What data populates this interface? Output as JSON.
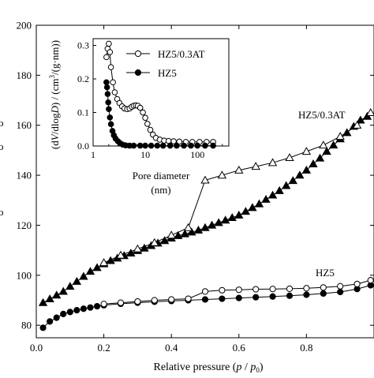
{
  "chart_data": [
    {
      "id": "main",
      "type": "line",
      "xlabel": "Relative pressure (p / p0)",
      "xlabel_parts": {
        "prefix": "Relative pressure (",
        "p": "p",
        "slash": " / ",
        "p0": "p",
        "sub0": "0",
        "suffix": ")"
      },
      "ylabel": "",
      "xlim": [
        0.0,
        1.0
      ],
      "ylim": [
        75,
        200
      ],
      "xticks": [
        0.0,
        0.2,
        0.4,
        0.6,
        0.8
      ],
      "xtick_labels": [
        "0.0",
        "0.2",
        "0.4",
        "0.6",
        "0.8"
      ],
      "yticks": [
        80,
        100,
        120,
        140,
        160,
        180,
        200
      ],
      "ytick_labels": [
        "80",
        "100",
        "120",
        "140",
        "160",
        "180",
        "200"
      ],
      "left_edge_glyphs": [
        "o",
        "o",
        "o"
      ],
      "series": [
        {
          "name": "HZ5/0.3AT",
          "branch": "adsorption",
          "marker": "triangle-filled",
          "points": [
            [
              0.02,
              89
            ],
            [
              0.04,
              90.5
            ],
            [
              0.06,
              92
            ],
            [
              0.08,
              93.5
            ],
            [
              0.1,
              95.5
            ],
            [
              0.12,
              97.5
            ],
            [
              0.14,
              99.5
            ],
            [
              0.16,
              101.5
            ],
            [
              0.18,
              103
            ],
            [
              0.2,
              104.5
            ],
            [
              0.22,
              105.8
            ],
            [
              0.24,
              106.8
            ],
            [
              0.26,
              107.8
            ],
            [
              0.28,
              108.8
            ],
            [
              0.3,
              109.8
            ],
            [
              0.32,
              110.8
            ],
            [
              0.34,
              111.8
            ],
            [
              0.36,
              112.8
            ],
            [
              0.38,
              113.8
            ],
            [
              0.4,
              114.8
            ],
            [
              0.42,
              115.8
            ],
            [
              0.44,
              116.5
            ],
            [
              0.46,
              117.2
            ],
            [
              0.48,
              118
            ],
            [
              0.5,
              119
            ],
            [
              0.52,
              120
            ],
            [
              0.54,
              121
            ],
            [
              0.56,
              122
            ],
            [
              0.58,
              123
            ],
            [
              0.6,
              124
            ],
            [
              0.62,
              125.5
            ],
            [
              0.64,
              127
            ],
            [
              0.66,
              128.5
            ],
            [
              0.68,
              130.3
            ],
            [
              0.7,
              132
            ],
            [
              0.72,
              133.8
            ],
            [
              0.74,
              135.8
            ],
            [
              0.76,
              137.8
            ],
            [
              0.78,
              140
            ],
            [
              0.8,
              142
            ],
            [
              0.82,
              144.5
            ],
            [
              0.84,
              146.8
            ],
            [
              0.86,
              149.5
            ],
            [
              0.88,
              152
            ],
            [
              0.9,
              154.5
            ],
            [
              0.92,
              157
            ],
            [
              0.94,
              159.5
            ],
            [
              0.96,
              162
            ],
            [
              0.98,
              163.5
            ]
          ]
        },
        {
          "name": "HZ5/0.3AT",
          "branch": "desorption",
          "marker": "triangle-open",
          "points": [
            [
              0.2,
              105
            ],
            [
              0.25,
              108
            ],
            [
              0.3,
              110.5
            ],
            [
              0.35,
              113
            ],
            [
              0.4,
              116
            ],
            [
              0.45,
              119
            ],
            [
              0.5,
              138
            ],
            [
              0.55,
              140
            ],
            [
              0.6,
              142
            ],
            [
              0.65,
              143.5
            ],
            [
              0.7,
              145
            ],
            [
              0.75,
              147
            ],
            [
              0.8,
              149.5
            ],
            [
              0.85,
              152
            ],
            [
              0.9,
              155.5
            ],
            [
              0.95,
              160
            ],
            [
              0.99,
              165
            ]
          ]
        },
        {
          "name": "HZ5",
          "branch": "adsorption",
          "marker": "circle-filled",
          "points": [
            [
              0.02,
              79
            ],
            [
              0.04,
              81.5
            ],
            [
              0.06,
              83
            ],
            [
              0.08,
              84.5
            ],
            [
              0.1,
              85.3
            ],
            [
              0.12,
              86
            ],
            [
              0.14,
              86.6
            ],
            [
              0.16,
              87.1
            ],
            [
              0.18,
              87.6
            ],
            [
              0.2,
              88
            ],
            [
              0.25,
              88.6
            ],
            [
              0.3,
              89
            ],
            [
              0.35,
              89.4
            ],
            [
              0.4,
              89.7
            ],
            [
              0.45,
              90
            ],
            [
              0.5,
              90.3
            ],
            [
              0.55,
              90.6
            ],
            [
              0.6,
              90.9
            ],
            [
              0.65,
              91.2
            ],
            [
              0.7,
              91.5
            ],
            [
              0.75,
              91.8
            ],
            [
              0.8,
              92.2
            ],
            [
              0.85,
              92.7
            ],
            [
              0.9,
              93.3
            ],
            [
              0.95,
              94.5
            ],
            [
              0.99,
              96
            ]
          ]
        },
        {
          "name": "HZ5",
          "branch": "desorption",
          "marker": "circle-open",
          "points": [
            [
              0.2,
              88.5
            ],
            [
              0.25,
              89
            ],
            [
              0.3,
              89.5
            ],
            [
              0.35,
              90
            ],
            [
              0.4,
              90.3
            ],
            [
              0.45,
              90.6
            ],
            [
              0.5,
              93.5
            ],
            [
              0.55,
              94
            ],
            [
              0.6,
              94.2
            ],
            [
              0.65,
              94.4
            ],
            [
              0.7,
              94.5
            ],
            [
              0.75,
              94.6
            ],
            [
              0.8,
              94.8
            ],
            [
              0.85,
              95.1
            ],
            [
              0.9,
              95.6
            ],
            [
              0.95,
              96.5
            ],
            [
              0.99,
              98
            ]
          ]
        }
      ],
      "annotations": [
        {
          "text": "HZ5/0.3AT",
          "near": "upper right of HZ5/0.3AT curve"
        },
        {
          "text": "HZ5",
          "near": "above HZ5 curve at right"
        }
      ]
    },
    {
      "id": "inset",
      "type": "line",
      "xscale": "log",
      "xlim": [
        1,
        400
      ],
      "ylim": [
        0.0,
        0.32
      ],
      "xticks": [
        1,
        10,
        100
      ],
      "xtick_labels": [
        "1",
        "10",
        "100"
      ],
      "yticks": [
        0.0,
        0.1,
        0.2,
        0.3
      ],
      "ytick_labels": [
        "0.0",
        "0.1",
        "0.2",
        "0.3"
      ],
      "ylabel": "(dV/dlogD) / (cm3/(g·nm))",
      "ylabel_parts": {
        "open": "(d",
        "v": "V",
        "mid": "/dlog",
        "d": "D",
        "close": ") / (cm",
        "sup": "3",
        "end": "/(g·nm))"
      },
      "xlabel_line1": "Pore diameter",
      "xlabel_line2": "(nm)",
      "legend_position": "top-right",
      "series": [
        {
          "name": "HZ5/0.3AT",
          "marker": "circle-open",
          "points": [
            [
              1.8,
              0.265
            ],
            [
              1.9,
              0.29
            ],
            [
              2.0,
              0.305
            ],
            [
              2.1,
              0.28
            ],
            [
              2.2,
              0.235
            ],
            [
              2.4,
              0.19
            ],
            [
              2.6,
              0.16
            ],
            [
              2.9,
              0.14
            ],
            [
              3.2,
              0.128
            ],
            [
              3.6,
              0.118
            ],
            [
              4.0,
              0.112
            ],
            [
              4.5,
              0.11
            ],
            [
              5.0,
              0.112
            ],
            [
              5.5,
              0.117
            ],
            [
              6.0,
              0.12
            ],
            [
              6.6,
              0.121
            ],
            [
              7.2,
              0.12
            ],
            [
              8.0,
              0.114
            ],
            [
              9.0,
              0.1
            ],
            [
              10,
              0.084
            ],
            [
              11,
              0.066
            ],
            [
              12.5,
              0.048
            ],
            [
              14,
              0.034
            ],
            [
              16,
              0.024
            ],
            [
              19,
              0.019
            ],
            [
              23,
              0.016
            ],
            [
              28,
              0.015
            ],
            [
              35,
              0.014
            ],
            [
              45,
              0.013
            ],
            [
              60,
              0.012
            ],
            [
              80,
              0.012
            ],
            [
              110,
              0.012
            ],
            [
              150,
              0.012
            ],
            [
              200,
              0.012
            ]
          ]
        },
        {
          "name": "HZ5",
          "marker": "circle-filled",
          "points": [
            [
              1.8,
              0.19
            ],
            [
              1.85,
              0.175
            ],
            [
              1.9,
              0.155
            ],
            [
              1.95,
              0.13
            ],
            [
              2.0,
              0.11
            ],
            [
              2.1,
              0.085
            ],
            [
              2.2,
              0.065
            ],
            [
              2.35,
              0.045
            ],
            [
              2.5,
              0.032
            ],
            [
              2.7,
              0.022
            ],
            [
              3.0,
              0.014
            ],
            [
              3.3,
              0.008
            ],
            [
              3.7,
              0.004
            ],
            [
              4.2,
              0.002
            ],
            [
              5,
              0.001
            ],
            [
              6,
              0.001
            ],
            [
              8,
              0.001
            ],
            [
              10,
              0.001
            ],
            [
              13,
              0.001
            ],
            [
              17,
              0.001
            ],
            [
              22,
              0.001
            ],
            [
              30,
              0.001
            ],
            [
              40,
              0.001
            ],
            [
              55,
              0.001
            ],
            [
              75,
              0.001
            ],
            [
              100,
              0.001
            ],
            [
              140,
              0.001
            ],
            [
              200,
              0.001
            ]
          ]
        }
      ]
    }
  ]
}
